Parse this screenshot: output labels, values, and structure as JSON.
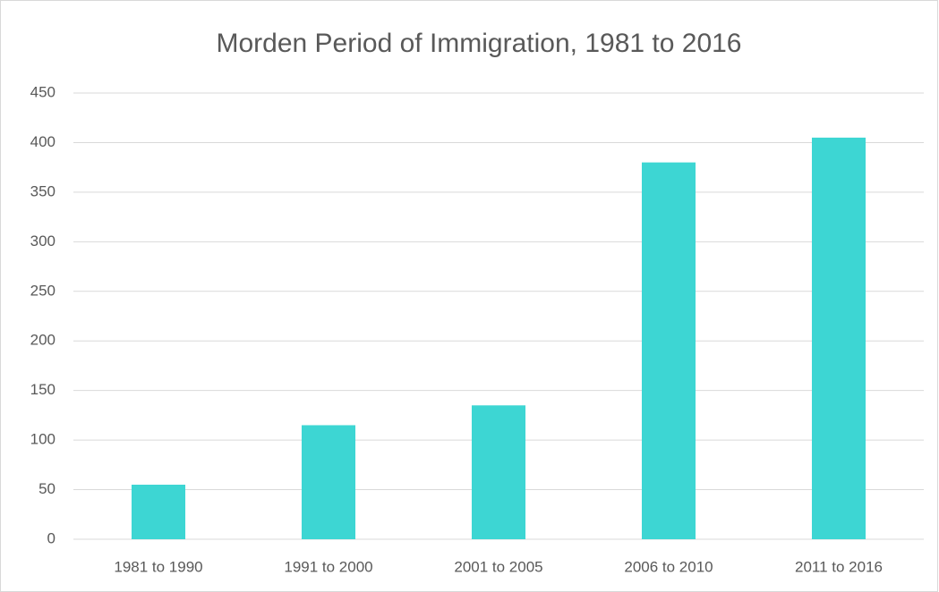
{
  "chart_data": {
    "type": "bar",
    "title": "Morden Period of Immigration, 1981 to 2016",
    "categories": [
      "1981 to 1990",
      "1991 to 2000",
      "2001 to 2005",
      "2006 to 2010",
      "2011 to 2016"
    ],
    "values": [
      55,
      115,
      135,
      380,
      405
    ],
    "color": "#3dd6d3",
    "ylim": [
      0,
      450
    ],
    "yticks": [
      0,
      50,
      100,
      150,
      200,
      250,
      300,
      350,
      400,
      450
    ],
    "grid": true
  }
}
